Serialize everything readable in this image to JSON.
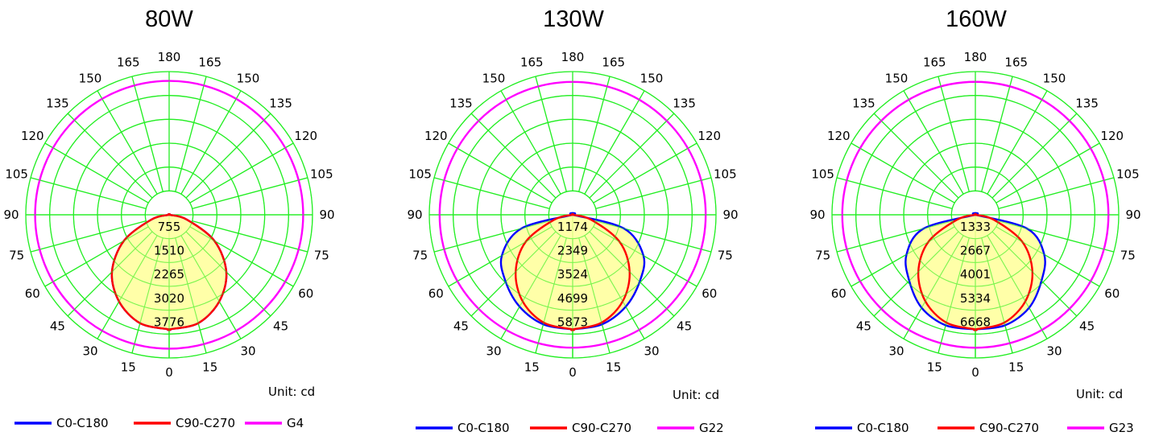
{
  "chart_data": [
    {
      "type": "polar",
      "title": "80W",
      "unit_label": "Unit: cd",
      "angle_labels": [
        "0",
        "15",
        "30",
        "45",
        "60",
        "75",
        "90",
        "105",
        "120",
        "135",
        "150",
        "165",
        "180"
      ],
      "radial_labels": [
        "755",
        "1510",
        "2265",
        "3020",
        "3776"
      ],
      "rmax": 3776,
      "series": [
        {
          "name": "C0-C180",
          "color": "#0000ff",
          "angles": [
            0,
            15,
            30,
            45,
            60,
            75,
            90
          ],
          "values": [
            3020,
            2960,
            2640,
            2130,
            1380,
            480,
            0
          ]
        },
        {
          "name": "C90-C270",
          "color": "#ff0000",
          "angles": [
            0,
            15,
            30,
            45,
            60,
            75,
            90
          ],
          "values": [
            3020,
            2960,
            2640,
            2130,
            1380,
            480,
            0
          ]
        },
        {
          "name": "G4",
          "color": "#ff00ff",
          "circle_value": 3530
        }
      ]
    },
    {
      "type": "polar",
      "title": "130W",
      "unit_label": "Unit: cd",
      "angle_labels": [
        "0",
        "15",
        "30",
        "45",
        "60",
        "75",
        "90",
        "105",
        "120",
        "135",
        "150",
        "165",
        "180"
      ],
      "radial_labels": [
        "1174",
        "2349",
        "3524",
        "4699",
        "5873"
      ],
      "rmax": 5873,
      "series": [
        {
          "name": "C0-C180",
          "color": "#0000ff",
          "angles": [
            0,
            15,
            30,
            45,
            60,
            75,
            90
          ],
          "values": [
            4699,
            4650,
            4350,
            3880,
            3350,
            2180,
            0
          ]
        },
        {
          "name": "C90-C270",
          "color": "#ff0000",
          "angles": [
            0,
            15,
            30,
            45,
            60,
            75,
            90
          ],
          "values": [
            4699,
            4580,
            4100,
            3300,
            2220,
            780,
            0
          ]
        },
        {
          "name": "G22",
          "color": "#ff00ff",
          "circle_value": 5450
        }
      ]
    },
    {
      "type": "polar",
      "title": "160W",
      "unit_label": "Unit: cd",
      "angle_labels": [
        "0",
        "15",
        "30",
        "45",
        "60",
        "75",
        "90",
        "105",
        "120",
        "135",
        "150",
        "165",
        "180"
      ],
      "radial_labels": [
        "1333",
        "2667",
        "4001",
        "5334",
        "6668"
      ],
      "rmax": 6668,
      "series": [
        {
          "name": "C0-C180",
          "color": "#0000ff",
          "angles": [
            0,
            15,
            30,
            45,
            60,
            75,
            90
          ],
          "values": [
            5334,
            5330,
            5000,
            4350,
            3700,
            2500,
            0
          ]
        },
        {
          "name": "C90-C270",
          "color": "#ff0000",
          "angles": [
            0,
            15,
            30,
            45,
            60,
            75,
            90
          ],
          "values": [
            5334,
            5200,
            4650,
            3750,
            2520,
            880,
            0
          ]
        },
        {
          "name": "G23",
          "color": "#ff00ff",
          "circle_value": 6190
        }
      ]
    }
  ]
}
